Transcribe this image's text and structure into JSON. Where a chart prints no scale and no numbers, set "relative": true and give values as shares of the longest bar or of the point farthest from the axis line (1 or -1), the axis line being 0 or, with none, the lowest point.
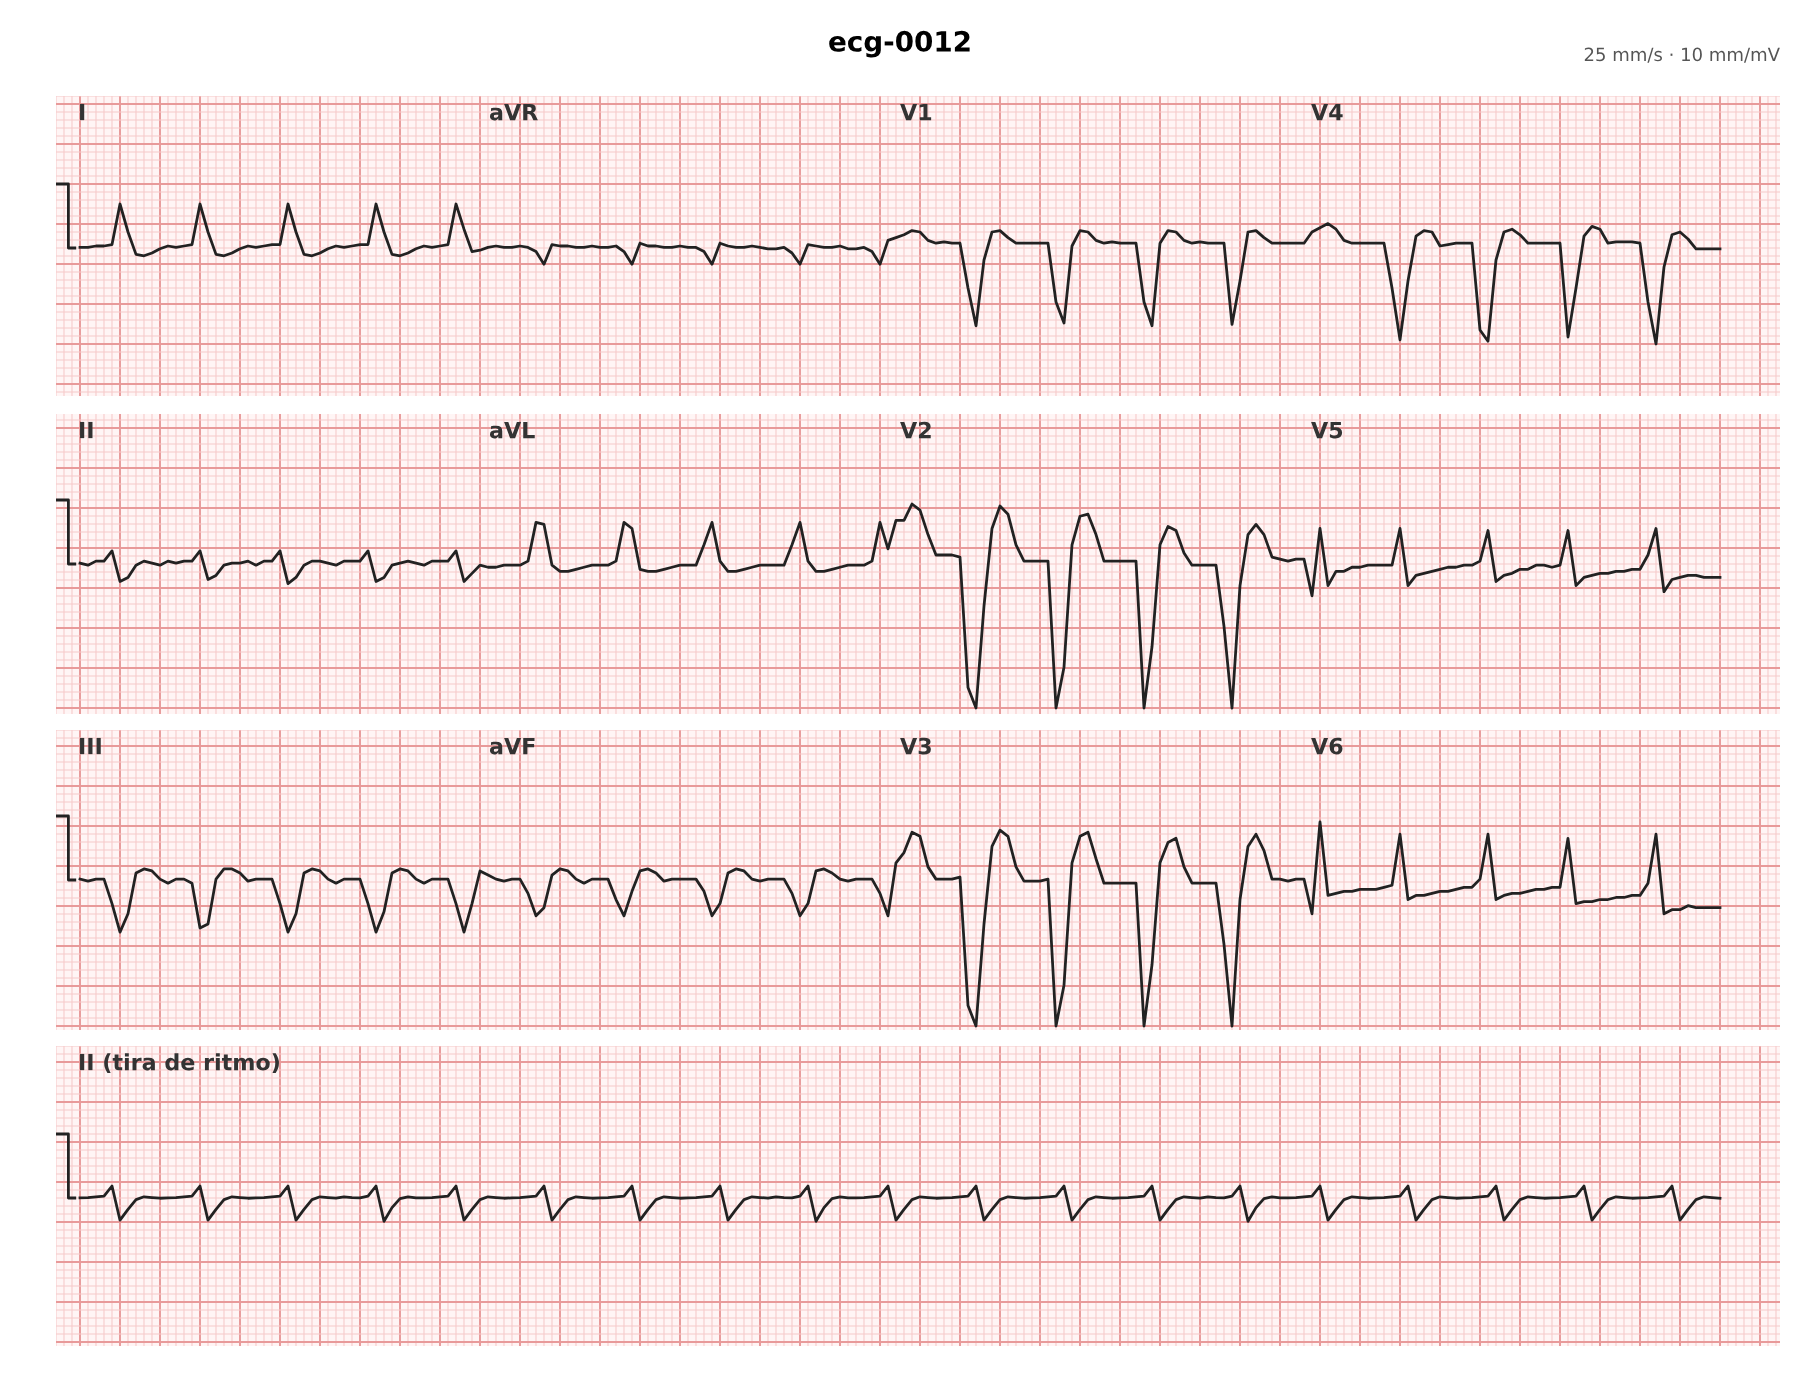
{
  "chart_data": [
    {
      "type": "line",
      "title": "ecg-0012",
      "subtitle": "25 mm/s · 10 mm/mV",
      "relative": true,
      "grid": true,
      "annotations": [
        "I",
        "aVR",
        "V1",
        "V4"
      ],
      "categories": [
        null,
        null,
        null,
        null,
        null,
        null,
        null,
        null,
        null,
        null,
        null,
        null,
        null,
        null,
        null,
        null,
        null,
        null,
        null,
        null,
        null,
        null,
        null,
        null,
        null,
        null,
        null,
        null,
        null,
        null,
        null,
        null,
        null,
        null,
        null,
        null,
        null,
        null,
        null,
        null,
        null,
        null,
        null,
        null,
        null,
        null,
        null,
        null,
        null,
        null,
        null,
        null,
        null,
        null,
        null,
        null,
        null,
        null,
        null,
        null,
        null,
        null,
        null,
        null,
        null,
        null,
        null,
        null,
        null,
        null,
        null,
        null,
        null,
        null,
        null,
        null,
        null,
        null,
        null,
        null,
        null,
        null,
        null,
        null,
        null,
        null,
        null,
        null,
        null,
        null,
        null,
        null,
        null,
        null,
        null,
        null,
        null,
        null,
        null,
        null,
        null,
        null,
        null,
        null,
        null,
        null,
        null,
        null,
        null,
        null,
        null,
        null,
        null,
        null,
        null,
        null,
        null,
        null,
        null,
        null,
        null,
        null,
        null,
        null,
        null,
        null,
        null,
        null,
        null,
        null,
        null,
        null,
        null,
        null,
        null,
        null,
        null,
        null,
        null,
        null,
        null,
        null,
        null,
        null,
        null,
        null,
        null,
        null,
        null,
        null,
        null,
        null,
        null,
        null,
        null,
        null,
        null,
        null,
        null,
        null,
        null,
        null,
        null,
        null,
        null,
        null,
        null,
        null,
        null,
        null,
        null,
        null,
        null,
        null,
        null,
        null,
        null,
        null,
        null,
        null,
        null,
        null,
        null,
        null,
        null,
        null,
        null,
        null,
        null,
        null,
        null,
        null,
        null,
        null,
        null,
        null,
        null,
        null,
        null,
        null,
        null,
        null,
        null,
        null,
        null,
        null
      ],
      "series": [
        {
          "color": "#222222",
          "values": [
            0.69,
            0.69,
            0.7,
            0.7,
            0.71,
            1.0,
            0.8,
            0.64,
            0.63,
            0.65,
            0.68,
            0.7,
            0.69,
            0.7,
            0.71,
            1.0,
            0.8,
            0.64,
            0.63,
            0.65,
            0.68,
            0.7,
            0.69,
            0.7,
            0.71,
            0.71,
            1.0,
            0.8,
            0.64,
            0.63,
            0.65,
            0.68,
            0.7,
            0.69,
            0.7,
            0.71,
            0.71,
            1.0,
            0.8,
            0.64,
            0.63,
            0.65,
            0.68,
            0.7,
            0.69,
            0.7,
            0.71,
            1.0,
            0.82,
            0.66,
            0.67,
            0.69,
            0.7,
            0.69,
            0.69,
            0.7,
            0.69,
            0.66,
            0.57,
            0.71,
            0.7,
            0.7,
            0.69,
            0.69,
            0.7,
            0.69,
            0.69,
            0.7,
            0.66,
            0.57,
            0.72,
            0.7,
            0.7,
            0.69,
            0.69,
            0.7,
            0.69,
            0.69,
            0.66,
            0.57,
            0.72,
            0.7,
            0.69,
            0.69,
            0.7,
            0.69,
            0.68,
            0.68,
            0.69,
            0.65,
            0.57,
            0.71,
            0.7,
            0.69,
            0.69,
            0.7,
            0.68,
            0.68,
            0.69,
            0.66,
            0.57,
            0.74,
            0.76,
            0.78,
            0.81,
            0.8,
            0.74,
            0.72,
            0.73,
            0.72,
            0.72,
            0.4,
            0.13,
            0.6,
            0.8,
            0.81,
            0.76,
            0.72,
            0.72,
            0.72,
            0.72,
            0.72,
            0.3,
            0.15,
            0.7,
            0.81,
            0.8,
            0.74,
            0.72,
            0.73,
            0.72,
            0.72,
            0.72,
            0.3,
            0.13,
            0.72,
            0.81,
            0.8,
            0.74,
            0.72,
            0.73,
            0.72,
            0.72,
            0.72,
            0.14,
            0.45,
            0.8,
            0.81,
            0.76,
            0.72,
            0.72,
            0.72,
            0.72,
            0.72,
            0.8,
            0.83,
            0.86,
            0.82,
            0.74,
            0.72,
            0.72,
            0.72,
            0.72,
            0.72,
            0.4,
            0.03,
            0.45,
            0.77,
            0.81,
            0.8,
            0.7,
            0.71,
            0.72,
            0.72,
            0.72,
            0.1,
            0.02,
            0.6,
            0.8,
            0.82,
            0.78,
            0.72,
            0.72,
            0.72,
            0.72,
            0.72,
            0.05,
            0.4,
            0.77,
            0.84,
            0.82,
            0.72,
            0.73,
            0.73,
            0.73,
            0.72,
            0.3,
            0.0,
            0.55,
            0.78,
            0.8,
            0.75,
            0.68,
            0.68,
            0.68,
            0.68
          ]
        }
      ]
    },
    {
      "type": "line",
      "relative": true,
      "grid": true,
      "annotations": [
        "II",
        "aVL",
        "V2",
        "V5"
      ],
      "categories": [
        null,
        null,
        null,
        null,
        null,
        null,
        null,
        null,
        null,
        null,
        null,
        null,
        null,
        null,
        null,
        null,
        null,
        null,
        null,
        null,
        null,
        null,
        null,
        null,
        null,
        null,
        null,
        null,
        null,
        null,
        null,
        null,
        null,
        null,
        null,
        null,
        null,
        null,
        null,
        null,
        null,
        null,
        null,
        null,
        null,
        null,
        null,
        null,
        null,
        null,
        null,
        null,
        null,
        null,
        null,
        null,
        null,
        null,
        null,
        null,
        null,
        null,
        null,
        null,
        null,
        null,
        null,
        null,
        null,
        null,
        null,
        null,
        null,
        null,
        null,
        null,
        null,
        null,
        null,
        null,
        null,
        null,
        null,
        null,
        null,
        null,
        null,
        null,
        null,
        null,
        null,
        null,
        null,
        null,
        null,
        null,
        null,
        null,
        null,
        null,
        null,
        null,
        null,
        null,
        null,
        null,
        null,
        null,
        null,
        null,
        null,
        null,
        null,
        null,
        null,
        null,
        null,
        null,
        null,
        null,
        null,
        null,
        null,
        null,
        null,
        null,
        null,
        null,
        null,
        null,
        null,
        null,
        null,
        null,
        null,
        null,
        null,
        null,
        null,
        null,
        null,
        null,
        null,
        null,
        null,
        null,
        null,
        null,
        null,
        null,
        null,
        null,
        null,
        null,
        null,
        null,
        null,
        null,
        null,
        null,
        null,
        null,
        null,
        null,
        null,
        null,
        null,
        null,
        null,
        null,
        null,
        null,
        null,
        null,
        null,
        null,
        null,
        null,
        null,
        null,
        null,
        null,
        null,
        null,
        null,
        null,
        null,
        null,
        null,
        null,
        null,
        null,
        null,
        null,
        null,
        null,
        null,
        null,
        null,
        null,
        null,
        null,
        null,
        null,
        null,
        null
      ],
      "series": [
        {
          "color": "#222222",
          "values": [
            0.71,
            0.7,
            0.72,
            0.72,
            0.77,
            0.62,
            0.64,
            0.7,
            0.72,
            0.71,
            0.7,
            0.72,
            0.71,
            0.72,
            0.72,
            0.77,
            0.63,
            0.65,
            0.7,
            0.71,
            0.71,
            0.72,
            0.7,
            0.72,
            0.72,
            0.77,
            0.61,
            0.64,
            0.7,
            0.72,
            0.72,
            0.71,
            0.7,
            0.72,
            0.72,
            0.72,
            0.77,
            0.62,
            0.64,
            0.7,
            0.71,
            0.72,
            0.71,
            0.7,
            0.72,
            0.72,
            0.72,
            0.77,
            0.62,
            0.66,
            0.7,
            0.69,
            0.69,
            0.7,
            0.7,
            0.7,
            0.72,
            0.91,
            0.9,
            0.7,
            0.67,
            0.67,
            0.68,
            0.69,
            0.7,
            0.7,
            0.7,
            0.72,
            0.91,
            0.88,
            0.68,
            0.67,
            0.67,
            0.68,
            0.69,
            0.7,
            0.7,
            0.7,
            0.8,
            0.91,
            0.72,
            0.67,
            0.67,
            0.68,
            0.69,
            0.7,
            0.7,
            0.7,
            0.7,
            0.8,
            0.91,
            0.72,
            0.67,
            0.67,
            0.68,
            0.69,
            0.7,
            0.7,
            0.7,
            0.72,
            0.91,
            0.78,
            0.92,
            0.92,
            1.0,
            0.97,
            0.85,
            0.75,
            0.75,
            0.75,
            0.74,
            0.1,
            0.0,
            0.5,
            0.88,
            0.99,
            0.95,
            0.8,
            0.72,
            0.72,
            0.72,
            0.72,
            0.0,
            0.2,
            0.8,
            0.94,
            0.95,
            0.85,
            0.72,
            0.72,
            0.72,
            0.72,
            0.72,
            0.0,
            0.3,
            0.8,
            0.89,
            0.87,
            0.76,
            0.7,
            0.7,
            0.7,
            0.7,
            0.4,
            0.0,
            0.6,
            0.85,
            0.9,
            0.85,
            0.74,
            0.73,
            0.72,
            0.73,
            0.73,
            0.55,
            0.88,
            0.6,
            0.67,
            0.67,
            0.69,
            0.69,
            0.7,
            0.7,
            0.7,
            0.7,
            0.88,
            0.6,
            0.65,
            0.66,
            0.67,
            0.68,
            0.69,
            0.69,
            0.7,
            0.7,
            0.72,
            0.87,
            0.62,
            0.65,
            0.66,
            0.68,
            0.68,
            0.7,
            0.7,
            0.69,
            0.7,
            0.87,
            0.6,
            0.64,
            0.65,
            0.66,
            0.66,
            0.67,
            0.67,
            0.68,
            0.68,
            0.75,
            0.88,
            0.57,
            0.63,
            0.64,
            0.65,
            0.65,
            0.64,
            0.64,
            0.64
          ]
        }
      ]
    },
    {
      "type": "line",
      "relative": true,
      "grid": true,
      "annotations": [
        "III",
        "aVF",
        "V3",
        "V6"
      ],
      "categories": [
        null,
        null,
        null,
        null,
        null,
        null,
        null,
        null,
        null,
        null,
        null,
        null,
        null,
        null,
        null,
        null,
        null,
        null,
        null,
        null,
        null,
        null,
        null,
        null,
        null,
        null,
        null,
        null,
        null,
        null,
        null,
        null,
        null,
        null,
        null,
        null,
        null,
        null,
        null,
        null,
        null,
        null,
        null,
        null,
        null,
        null,
        null,
        null,
        null,
        null,
        null,
        null,
        null,
        null,
        null,
        null,
        null,
        null,
        null,
        null,
        null,
        null,
        null,
        null,
        null,
        null,
        null,
        null,
        null,
        null,
        null,
        null,
        null,
        null,
        null,
        null,
        null,
        null,
        null,
        null,
        null,
        null,
        null,
        null,
        null,
        null,
        null,
        null,
        null,
        null,
        null,
        null,
        null,
        null,
        null,
        null,
        null,
        null,
        null,
        null,
        null,
        null,
        null,
        null,
        null,
        null,
        null,
        null,
        null,
        null,
        null,
        null,
        null,
        null,
        null,
        null,
        null,
        null,
        null,
        null,
        null,
        null,
        null,
        null,
        null,
        null,
        null,
        null,
        null,
        null,
        null,
        null,
        null,
        null,
        null,
        null,
        null,
        null,
        null,
        null,
        null,
        null,
        null,
        null,
        null,
        null,
        null,
        null,
        null,
        null,
        null,
        null,
        null,
        null,
        null,
        null,
        null,
        null,
        null,
        null,
        null,
        null,
        null,
        null,
        null,
        null,
        null,
        null,
        null,
        null,
        null,
        null,
        null,
        null,
        null,
        null,
        null,
        null,
        null,
        null,
        null,
        null,
        null,
        null,
        null,
        null,
        null,
        null,
        null,
        null,
        null,
        null,
        null,
        null,
        null,
        null,
        null,
        null,
        null,
        null,
        null,
        null,
        null,
        null,
        null,
        null
      ],
      "series": [
        {
          "color": "#222222",
          "values": [
            0.72,
            0.71,
            0.72,
            0.72,
            0.6,
            0.46,
            0.55,
            0.75,
            0.77,
            0.76,
            0.72,
            0.7,
            0.72,
            0.72,
            0.7,
            0.48,
            0.5,
            0.72,
            0.77,
            0.77,
            0.75,
            0.71,
            0.72,
            0.72,
            0.72,
            0.6,
            0.46,
            0.55,
            0.75,
            0.77,
            0.76,
            0.72,
            0.7,
            0.72,
            0.72,
            0.72,
            0.6,
            0.46,
            0.56,
            0.75,
            0.77,
            0.76,
            0.72,
            0.7,
            0.72,
            0.72,
            0.72,
            0.6,
            0.46,
            0.6,
            0.76,
            0.74,
            0.72,
            0.71,
            0.72,
            0.72,
            0.65,
            0.54,
            0.58,
            0.74,
            0.77,
            0.76,
            0.72,
            0.7,
            0.72,
            0.72,
            0.72,
            0.62,
            0.54,
            0.66,
            0.76,
            0.77,
            0.75,
            0.71,
            0.72,
            0.72,
            0.72,
            0.72,
            0.66,
            0.54,
            0.6,
            0.75,
            0.77,
            0.76,
            0.72,
            0.71,
            0.72,
            0.72,
            0.72,
            0.65,
            0.54,
            0.6,
            0.76,
            0.77,
            0.75,
            0.72,
            0.71,
            0.72,
            0.72,
            0.72,
            0.65,
            0.54,
            0.8,
            0.85,
            0.95,
            0.93,
            0.78,
            0.72,
            0.72,
            0.72,
            0.73,
            0.1,
            0.0,
            0.5,
            0.88,
            0.96,
            0.93,
            0.78,
            0.71,
            0.71,
            0.71,
            0.72,
            0.0,
            0.2,
            0.8,
            0.93,
            0.95,
            0.82,
            0.7,
            0.7,
            0.7,
            0.7,
            0.7,
            0.0,
            0.3,
            0.8,
            0.9,
            0.92,
            0.78,
            0.7,
            0.7,
            0.7,
            0.7,
            0.4,
            0.0,
            0.62,
            0.88,
            0.94,
            0.86,
            0.72,
            0.72,
            0.71,
            0.72,
            0.72,
            0.55,
            1.0,
            0.64,
            0.65,
            0.66,
            0.66,
            0.67,
            0.67,
            0.67,
            0.68,
            0.69,
            0.94,
            0.62,
            0.64,
            0.64,
            0.65,
            0.66,
            0.66,
            0.67,
            0.68,
            0.68,
            0.72,
            0.94,
            0.62,
            0.64,
            0.65,
            0.65,
            0.66,
            0.67,
            0.67,
            0.68,
            0.68,
            0.92,
            0.6,
            0.61,
            0.61,
            0.62,
            0.62,
            0.63,
            0.63,
            0.64,
            0.64,
            0.7,
            0.94,
            0.55,
            0.57,
            0.57,
            0.59,
            0.58,
            0.58,
            0.58,
            0.58
          ]
        }
      ]
    },
    {
      "type": "line",
      "relative": true,
      "grid": true,
      "annotations": [
        "II (tira de ritmo)"
      ],
      "categories": [
        null,
        null,
        null,
        null,
        null,
        null,
        null,
        null,
        null,
        null,
        null,
        null,
        null,
        null,
        null,
        null,
        null,
        null,
        null,
        null,
        null,
        null,
        null,
        null,
        null,
        null,
        null,
        null,
        null,
        null,
        null,
        null,
        null,
        null,
        null,
        null,
        null,
        null,
        null,
        null,
        null,
        null,
        null,
        null,
        null,
        null,
        null,
        null,
        null,
        null,
        null,
        null,
        null,
        null,
        null,
        null,
        null,
        null,
        null,
        null,
        null,
        null,
        null,
        null,
        null,
        null,
        null,
        null,
        null,
        null,
        null,
        null,
        null,
        null,
        null,
        null,
        null,
        null,
        null,
        null,
        null,
        null,
        null,
        null,
        null,
        null,
        null,
        null,
        null,
        null,
        null,
        null,
        null,
        null,
        null,
        null,
        null,
        null,
        null,
        null,
        null,
        null,
        null,
        null,
        null,
        null,
        null,
        null,
        null,
        null,
        null,
        null,
        null,
        null,
        null,
        null,
        null,
        null,
        null,
        null,
        null,
        null,
        null,
        null,
        null,
        null,
        null,
        null,
        null,
        null,
        null,
        null,
        null,
        null,
        null,
        null,
        null,
        null,
        null,
        null,
        null,
        null,
        null,
        null,
        null,
        null,
        null,
        null,
        null,
        null,
        null,
        null,
        null,
        null,
        null,
        null,
        null,
        null,
        null,
        null,
        null,
        null,
        null,
        null,
        null,
        null,
        null,
        null,
        null,
        null,
        null,
        null,
        null,
        null,
        null,
        null,
        null,
        null,
        null,
        null,
        null,
        null,
        null,
        null,
        null,
        null,
        null,
        null,
        null,
        null,
        null,
        null,
        null,
        null,
        null,
        null,
        null,
        null,
        null,
        null,
        null,
        null,
        null,
        null,
        null,
        null
      ],
      "series": [
        {
          "color": "#222222",
          "values": [
            0.67,
            0.68,
            0.7,
            0.72,
            1.0,
            0.05,
            0.35,
            0.62,
            0.7,
            0.68,
            0.66,
            0.67,
            0.68,
            0.7,
            0.72,
            1.0,
            0.05,
            0.35,
            0.62,
            0.7,
            0.68,
            0.66,
            0.67,
            0.68,
            0.7,
            0.72,
            1.0,
            0.05,
            0.35,
            0.62,
            0.7,
            0.68,
            0.66,
            0.7,
            0.68,
            0.67,
            0.72,
            1.0,
            0.02,
            0.4,
            0.65,
            0.7,
            0.67,
            0.67,
            0.68,
            0.7,
            0.72,
            1.0,
            0.05,
            0.35,
            0.62,
            0.7,
            0.68,
            0.66,
            0.67,
            0.68,
            0.7,
            0.72,
            1.0,
            0.05,
            0.35,
            0.62,
            0.7,
            0.68,
            0.66,
            0.67,
            0.68,
            0.7,
            0.72,
            1.0,
            0.05,
            0.35,
            0.62,
            0.7,
            0.68,
            0.66,
            0.67,
            0.68,
            0.7,
            0.72,
            1.0,
            0.05,
            0.35,
            0.62,
            0.7,
            0.68,
            0.66,
            0.7,
            0.68,
            0.67,
            0.72,
            1.0,
            0.02,
            0.4,
            0.65,
            0.7,
            0.67,
            0.67,
            0.68,
            0.7,
            0.72,
            1.0,
            0.05,
            0.35,
            0.62,
            0.7,
            0.68,
            0.66,
            0.67,
            0.68,
            0.7,
            0.72,
            1.0,
            0.05,
            0.35,
            0.62,
            0.7,
            0.68,
            0.66,
            0.67,
            0.68,
            0.7,
            0.72,
            1.0,
            0.05,
            0.35,
            0.62,
            0.7,
            0.68,
            0.66,
            0.67,
            0.68,
            0.7,
            0.72,
            1.0,
            0.05,
            0.35,
            0.62,
            0.7,
            0.68,
            0.66,
            0.7,
            0.68,
            0.67,
            0.72,
            1.0,
            0.02,
            0.4,
            0.65,
            0.7,
            0.67,
            0.67,
            0.68,
            0.7,
            0.72,
            1.0,
            0.05,
            0.35,
            0.62,
            0.7,
            0.68,
            0.66,
            0.67,
            0.68,
            0.7,
            0.72,
            1.0,
            0.05,
            0.35,
            0.62,
            0.7,
            0.68,
            0.66,
            0.67,
            0.68,
            0.7,
            0.72,
            1.0,
            0.05,
            0.35,
            0.62,
            0.7,
            0.68,
            0.66,
            0.67,
            0.68,
            0.7,
            0.72,
            1.0,
            0.05,
            0.35,
            0.62,
            0.7,
            0.68,
            0.66,
            0.67,
            0.68,
            0.7,
            0.72,
            1.0,
            0.05,
            0.35,
            0.62,
            0.7,
            0.68,
            0.66
          ]
        }
      ]
    }
  ]
}
